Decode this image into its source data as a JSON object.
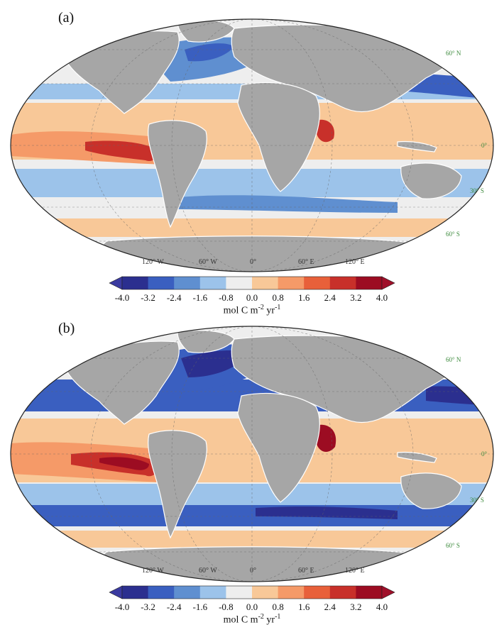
{
  "panels": [
    {
      "label": "(a)",
      "lon_labels": [
        "120° W",
        "60° W",
        "0°",
        "60° E",
        "120° E"
      ],
      "lat_labels": [
        "60° N",
        "0°",
        "30° S",
        "60° S"
      ]
    },
    {
      "label": "(b)",
      "lon_labels": [
        "120° W",
        "60° W",
        "0°",
        "60° E",
        "120° E"
      ],
      "lat_labels": [
        "60° N",
        "0°",
        "30° S",
        "60° S"
      ]
    }
  ],
  "colorbar": {
    "ticks": [
      "-4.0",
      "-3.2",
      "-2.4",
      "-1.6",
      "-0.8",
      "0.0",
      "0.8",
      "1.6",
      "2.4",
      "3.2",
      "4.0"
    ],
    "units_main": "mol C m",
    "units_sup1": "-2",
    "units_mid": " yr",
    "units_sup2": "-1",
    "colors": [
      "#2b2f8f",
      "#3a5fc0",
      "#5f8fd0",
      "#9cc3ea",
      "#eeeeee",
      "#f8c898",
      "#f59a68",
      "#e8603a",
      "#c8302a",
      "#9c0c22"
    ],
    "under_color": "#3a3aa0",
    "over_color": "#a0102a"
  },
  "colors": {
    "land": "#a6a6a6",
    "ocean_neutral": "#eeeeee"
  }
}
